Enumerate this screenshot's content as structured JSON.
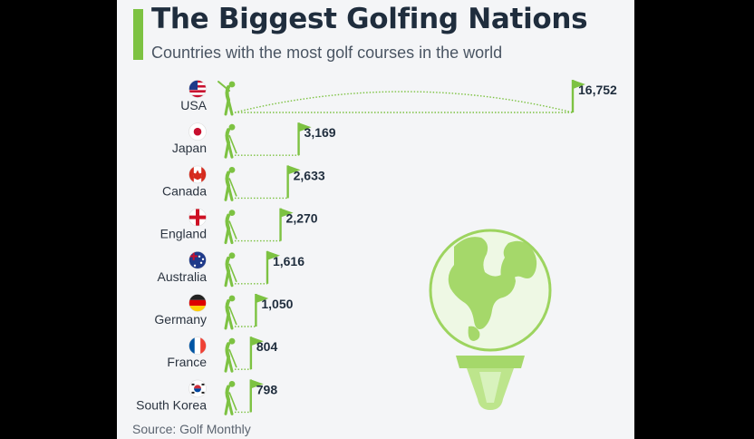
{
  "title": "The Biggest Golfing Nations",
  "subtitle": "Countries with the most golf courses in the world",
  "source": "Source: Golf Monthly",
  "colors": {
    "accent": "#7dc242",
    "text": "#1f2d3d",
    "background": "#f4f5f7"
  },
  "chart_data": {
    "type": "bar",
    "title": "The Biggest Golfing Nations",
    "subtitle": "Countries with the most golf courses in the world",
    "categories": [
      "USA",
      "Japan",
      "Canada",
      "England",
      "Australia",
      "Germany",
      "France",
      "South Korea"
    ],
    "values": [
      16752,
      3169,
      2633,
      2270,
      1616,
      1050,
      804,
      798
    ],
    "labels": [
      "16,752",
      "3,169",
      "2,633",
      "2,270",
      "1,616",
      "1,050",
      "804",
      "798"
    ],
    "flags": [
      "us-flag-icon",
      "jp-flag-icon",
      "ca-flag-icon",
      "gb-eng-flag-icon",
      "au-flag-icon",
      "de-flag-icon",
      "fr-flag-icon",
      "kr-flag-icon"
    ],
    "grid": false,
    "legend": "none"
  }
}
